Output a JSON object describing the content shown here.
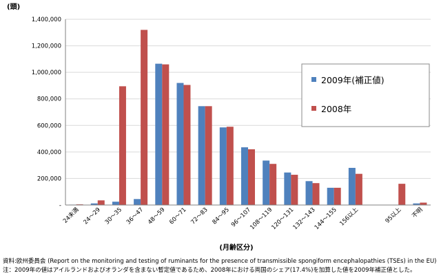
{
  "chart_data": {
    "type": "bar",
    "unit_label": "(頭)",
    "xlabel": "(月齢区分)",
    "ylim": [
      0,
      1400000
    ],
    "yticks": [
      {
        "value": 0,
        "label": "-"
      },
      {
        "value": 200000,
        "label": "200,000"
      },
      {
        "value": 400000,
        "label": "400,000"
      },
      {
        "value": 600000,
        "label": "600,000"
      },
      {
        "value": 800000,
        "label": "800,000"
      },
      {
        "value": 1000000,
        "label": "1,000,000"
      },
      {
        "value": 1200000,
        "label": "1,200,000"
      },
      {
        "value": 1400000,
        "label": "1,400,000"
      }
    ],
    "categories": [
      "24未満",
      "24〜29",
      "30〜35",
      "36〜47",
      "48〜59",
      "60〜71",
      "72〜83",
      "84〜95",
      "96〜107",
      "108〜119",
      "120〜131",
      "132〜143",
      "144〜155",
      "156以上",
      "",
      "95以上",
      "不明"
    ],
    "series": [
      {
        "name": "2009年(補正値)",
        "color": "#4f81bd",
        "values": [
          3000,
          12000,
          25000,
          45000,
          1065000,
          920000,
          745000,
          585000,
          435000,
          335000,
          245000,
          180000,
          130000,
          280000,
          null,
          0,
          12000
        ]
      },
      {
        "name": "2008年",
        "color": "#c0504d",
        "values": [
          5000,
          35000,
          895000,
          1320000,
          1060000,
          905000,
          745000,
          590000,
          420000,
          310000,
          228000,
          165000,
          130000,
          235000,
          null,
          160000,
          18000
        ]
      }
    ],
    "legend": "right",
    "grid": true
  },
  "source": {
    "line1": "資料:欧州委員会 (Report on the monitoring and testing of ruminants for the presence of transmissible spongiform encephalopathies (TSEs) in the EU)",
    "line2": "注：2009年の値はアイルランドおよびオランダを含まない暫定値であるため、2008年における両国のシェア(17.4%)を加算した値を2009年補正値とした。"
  }
}
